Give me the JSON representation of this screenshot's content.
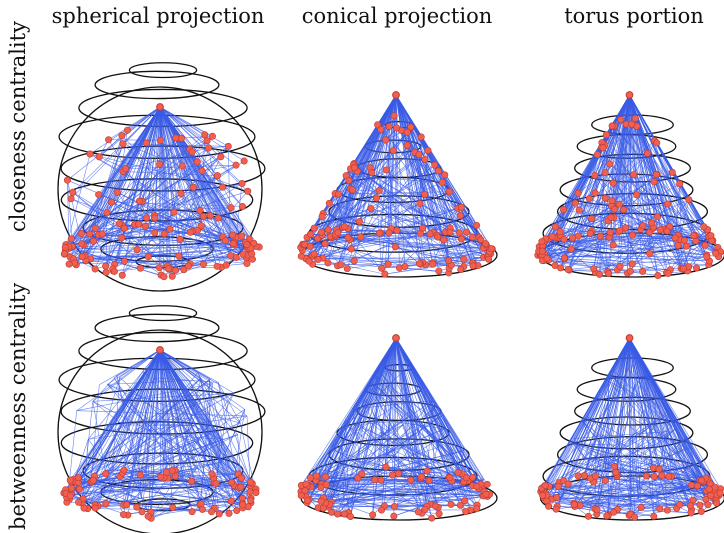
{
  "columns": [
    "spherical projection",
    "conical projection",
    "torus portion"
  ],
  "rows": [
    "closeness centrality",
    "betweenness centrality"
  ],
  "colors": {
    "edge": "#3a5be6",
    "node": "#f06050",
    "node_stroke": "#c03a30",
    "wire": "#111111"
  },
  "panels": [
    {
      "row": "closeness centrality",
      "column": "spherical projection",
      "shape": "sphere"
    },
    {
      "row": "closeness centrality",
      "column": "conical projection",
      "shape": "cone"
    },
    {
      "row": "closeness centrality",
      "column": "torus portion",
      "shape": "torus"
    },
    {
      "row": "betweenness centrality",
      "column": "spherical projection",
      "shape": "sphere"
    },
    {
      "row": "betweenness centrality",
      "column": "conical projection",
      "shape": "cone"
    },
    {
      "row": "betweenness centrality",
      "column": "torus portion",
      "shape": "torus"
    }
  ]
}
